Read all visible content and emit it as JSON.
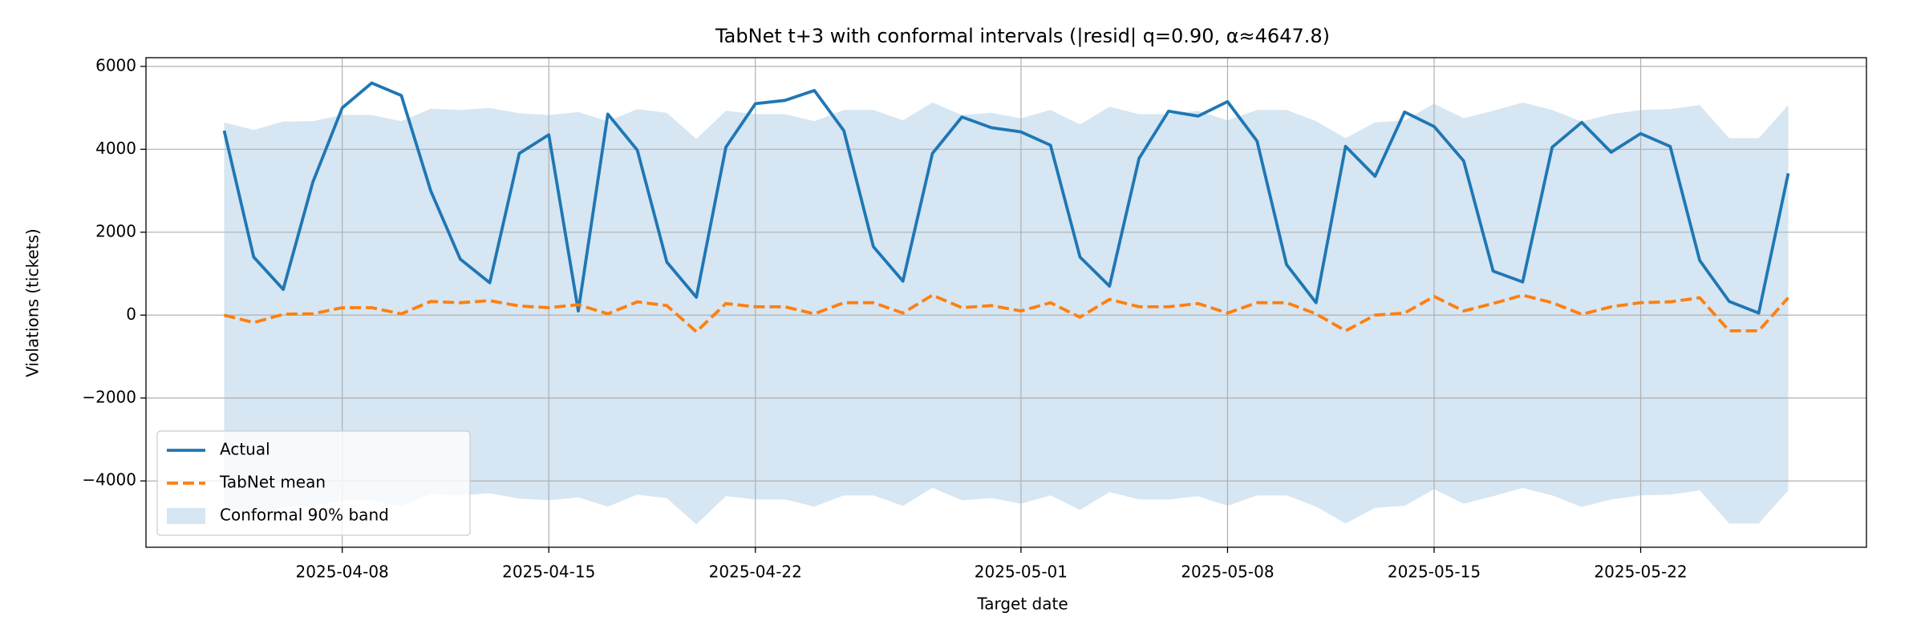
{
  "chart_data": {
    "type": "line",
    "title": "TabNet t+3 with conformal intervals (|resid| q=0.90, α≈4647.8)",
    "x_label": "Target date",
    "y_label": "Violations (tickets)",
    "x": [
      "2025-04-04",
      "2025-04-05",
      "2025-04-06",
      "2025-04-07",
      "2025-04-08",
      "2025-04-09",
      "2025-04-10",
      "2025-04-11",
      "2025-04-12",
      "2025-04-13",
      "2025-04-14",
      "2025-04-15",
      "2025-04-16",
      "2025-04-17",
      "2025-04-18",
      "2025-04-19",
      "2025-04-20",
      "2025-04-21",
      "2025-04-22",
      "2025-04-23",
      "2025-04-24",
      "2025-04-25",
      "2025-04-26",
      "2025-04-27",
      "2025-04-28",
      "2025-04-29",
      "2025-04-30",
      "2025-05-01",
      "2025-05-02",
      "2025-05-03",
      "2025-05-04",
      "2025-05-05",
      "2025-05-06",
      "2025-05-07",
      "2025-05-08",
      "2025-05-09",
      "2025-05-10",
      "2025-05-11",
      "2025-05-12",
      "2025-05-13",
      "2025-05-14",
      "2025-05-15",
      "2025-05-16",
      "2025-05-17",
      "2025-05-18",
      "2025-05-19",
      "2025-05-20",
      "2025-05-21",
      "2025-05-22",
      "2025-05-23",
      "2025-05-24",
      "2025-05-25",
      "2025-05-26",
      "2025-05-27"
    ],
    "series": [
      {
        "name": "Actual",
        "color": "#1f77b4",
        "values": [
          4450,
          1400,
          620,
          3200,
          5000,
          5600,
          5300,
          3000,
          1350,
          780,
          3900,
          4350,
          100,
          4850,
          3980,
          1280,
          430,
          4050,
          5100,
          5180,
          5420,
          4450,
          1650,
          820,
          3900,
          4780,
          4520,
          4420,
          4100,
          1400,
          700,
          3780,
          4920,
          4800,
          5150,
          4200,
          1220,
          300,
          4070,
          3350,
          4900,
          4550,
          3720,
          1060,
          800,
          4050,
          4650,
          3930,
          4380,
          4070,
          1320,
          330,
          50,
          3420
        ]
      },
      {
        "name": "TabNet mean",
        "color": "#ff7f0e",
        "dashed": true,
        "values": [
          0,
          -180,
          20,
          30,
          180,
          180,
          30,
          330,
          300,
          350,
          220,
          180,
          250,
          30,
          320,
          230,
          -400,
          280,
          200,
          200,
          30,
          300,
          300,
          50,
          480,
          180,
          230,
          100,
          300,
          -50,
          380,
          200,
          200,
          280,
          50,
          300,
          300,
          30,
          -380,
          0,
          50,
          450,
          100,
          280,
          480,
          300,
          20,
          200,
          300,
          320,
          420,
          -380,
          -380,
          420
        ]
      }
    ],
    "band": {
      "name": "Conformal 90% band",
      "color": "#d6e6f2",
      "lower": [
        -4648,
        -4828,
        -4628,
        -4618,
        -4468,
        -4468,
        -4618,
        -4318,
        -4348,
        -4298,
        -4428,
        -4468,
        -4398,
        -4618,
        -4328,
        -4418,
        -5048,
        -4368,
        -4448,
        -4448,
        -4618,
        -4348,
        -4348,
        -4598,
        -4168,
        -4468,
        -4418,
        -4548,
        -4348,
        -4698,
        -4268,
        -4448,
        -4448,
        -4368,
        -4598,
        -4348,
        -4348,
        -4618,
        -5028,
        -4648,
        -4598,
        -4198,
        -4548,
        -4368,
        -4168,
        -4348,
        -4628,
        -4448,
        -4348,
        -4328,
        -4228,
        -5028,
        -5028,
        -4228
      ],
      "upper": [
        4648,
        4468,
        4668,
        4678,
        4828,
        4828,
        4678,
        4978,
        4948,
        4998,
        4868,
        4828,
        4898,
        4678,
        4968,
        4878,
        4248,
        4928,
        4848,
        4848,
        4678,
        4948,
        4948,
        4698,
        5128,
        4828,
        4878,
        4748,
        4948,
        4598,
        5028,
        4848,
        4848,
        4928,
        4698,
        4948,
        4948,
        4678,
        4268,
        4648,
        4698,
        5098,
        4748,
        4928,
        5128,
        4948,
        4668,
        4848,
        4948,
        4968,
        5068,
        4268,
        4268,
        5068
      ]
    },
    "xlim": [
      "2025-04-01T08:24:00Z",
      "2025-05-29T15:36:00Z"
    ],
    "xticks": [
      "2025-04-08",
      "2025-04-15",
      "2025-04-22",
      "2025-05-01",
      "2025-05-08",
      "2025-05-15",
      "2025-05-22"
    ],
    "ylim": [
      -5600,
      6210
    ],
    "yticks": [
      {
        "value": -4000,
        "label": "−4000"
      },
      {
        "value": -2000,
        "label": "−2000"
      },
      0,
      2000,
      4000,
      6000
    ],
    "grid": true,
    "legend": "lower left"
  }
}
